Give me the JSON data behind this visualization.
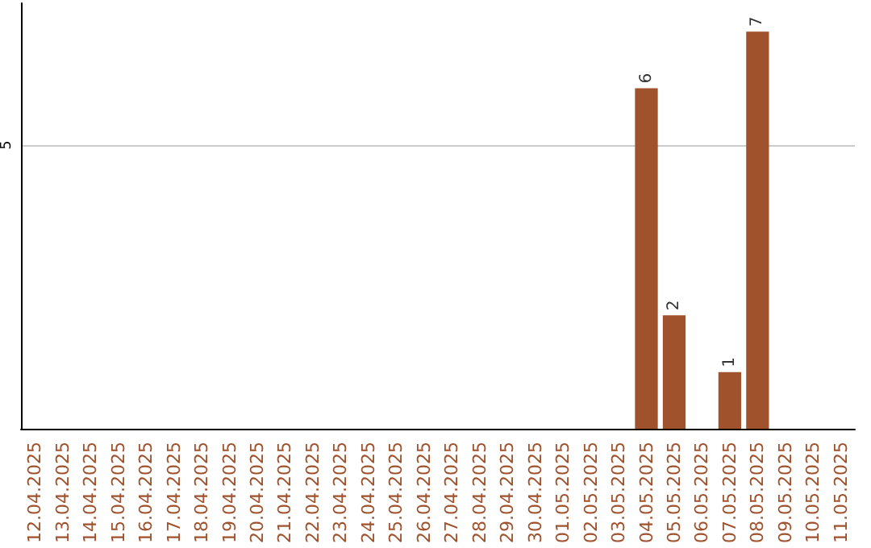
{
  "chart_data": {
    "type": "bar",
    "categories": [
      "12.04.2025",
      "13.04.2025",
      "14.04.2025",
      "15.04.2025",
      "16.04.2025",
      "17.04.2025",
      "18.04.2025",
      "19.04.2025",
      "20.04.2025",
      "21.04.2025",
      "22.04.2025",
      "23.04.2025",
      "24.04.2025",
      "25.04.2025",
      "26.04.2025",
      "27.04.2025",
      "28.04.2025",
      "29.04.2025",
      "30.04.2025",
      "01.05.2025",
      "02.05.2025",
      "03.05.2025",
      "04.05.2025",
      "05.05.2025",
      "06.05.2025",
      "07.05.2025",
      "08.05.2025",
      "09.05.2025",
      "10.05.2025",
      "11.05.2025"
    ],
    "values": [
      null,
      null,
      null,
      null,
      null,
      null,
      null,
      null,
      null,
      null,
      null,
      null,
      null,
      null,
      null,
      null,
      null,
      null,
      null,
      null,
      null,
      null,
      6,
      2,
      null,
      1,
      7,
      null,
      null,
      null
    ],
    "color": "#a0522d",
    "ylim": [
      0,
      7.5
    ],
    "yticks": [
      5
    ],
    "grid": "y",
    "data_labels": true
  }
}
